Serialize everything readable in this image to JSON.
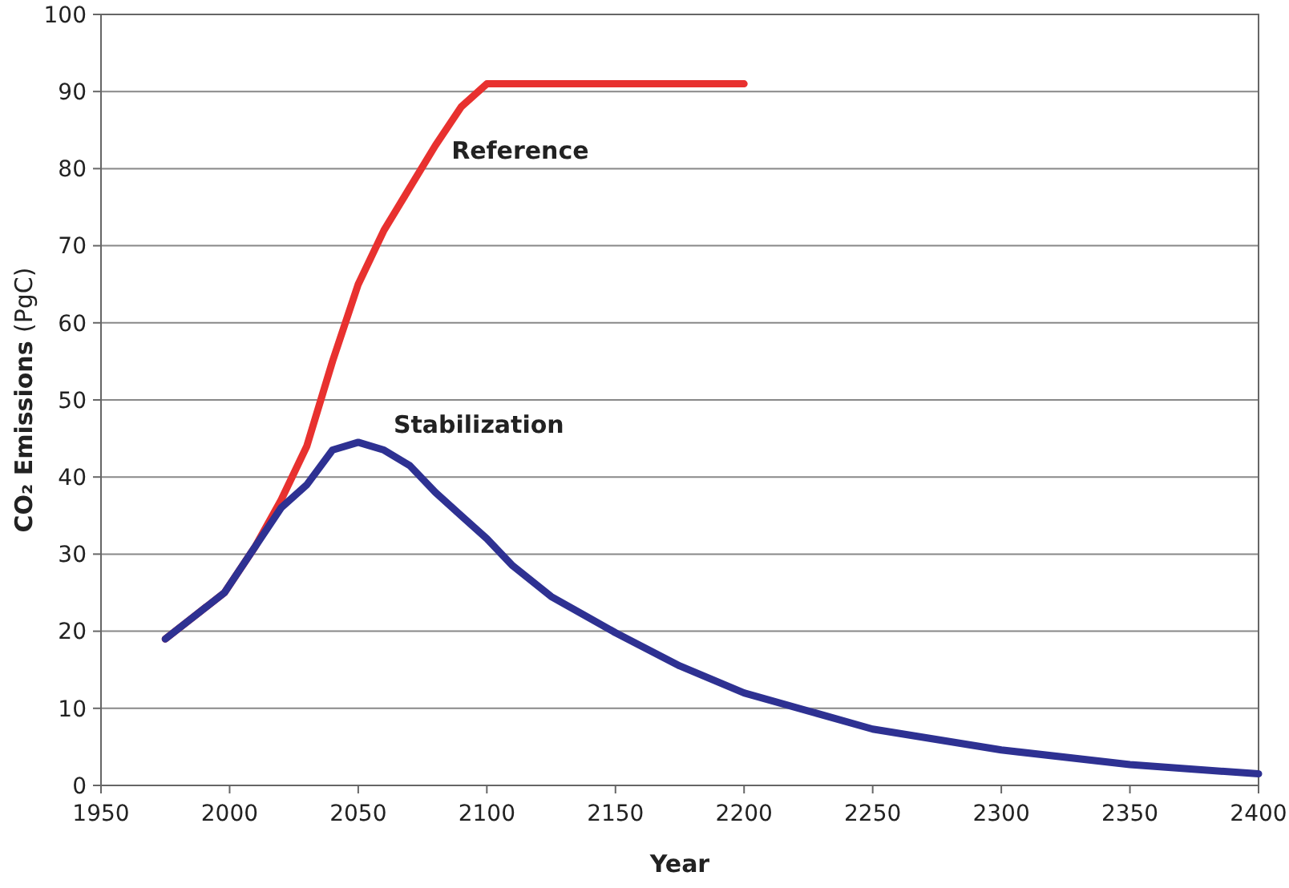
{
  "chart_data": {
    "type": "line",
    "xlabel": "Year",
    "ylabel": "CO₂ Emissions (PgC)",
    "xlim": [
      1950,
      2400
    ],
    "xticks": [
      1950,
      2000,
      2050,
      2100,
      2150,
      2200,
      2250,
      2300,
      2350,
      2400
    ],
    "ylim": [
      0,
      100
    ],
    "yticks": [
      0,
      10,
      20,
      30,
      40,
      50,
      60,
      70,
      80,
      90,
      100
    ],
    "grid": "y",
    "marker": "none",
    "line_style": "solid",
    "series": [
      {
        "name": "Reference",
        "color": "#e8312f",
        "x": [
          1975,
          1998,
          2010,
          2020,
          2030,
          2040,
          2050,
          2060,
          2070,
          2080,
          2090,
          2100,
          2200
        ],
        "values": [
          19,
          25,
          31,
          37,
          44,
          55,
          65,
          72,
          77.5,
          83,
          88,
          91,
          91
        ]
      },
      {
        "name": "Stabilization",
        "color": "#2e3192",
        "x": [
          1975,
          1998,
          2010,
          2020,
          2030,
          2040,
          2050,
          2060,
          2070,
          2080,
          2090,
          2100,
          2110,
          2125,
          2150,
          2175,
          2200,
          2250,
          2300,
          2350,
          2400
        ],
        "values": [
          19,
          25,
          31,
          36,
          39,
          43.5,
          44.5,
          43.5,
          41.5,
          38,
          35,
          32,
          28.5,
          24.5,
          19.8,
          15.5,
          12,
          7.3,
          4.6,
          2.7,
          1.5
        ]
      }
    ]
  }
}
